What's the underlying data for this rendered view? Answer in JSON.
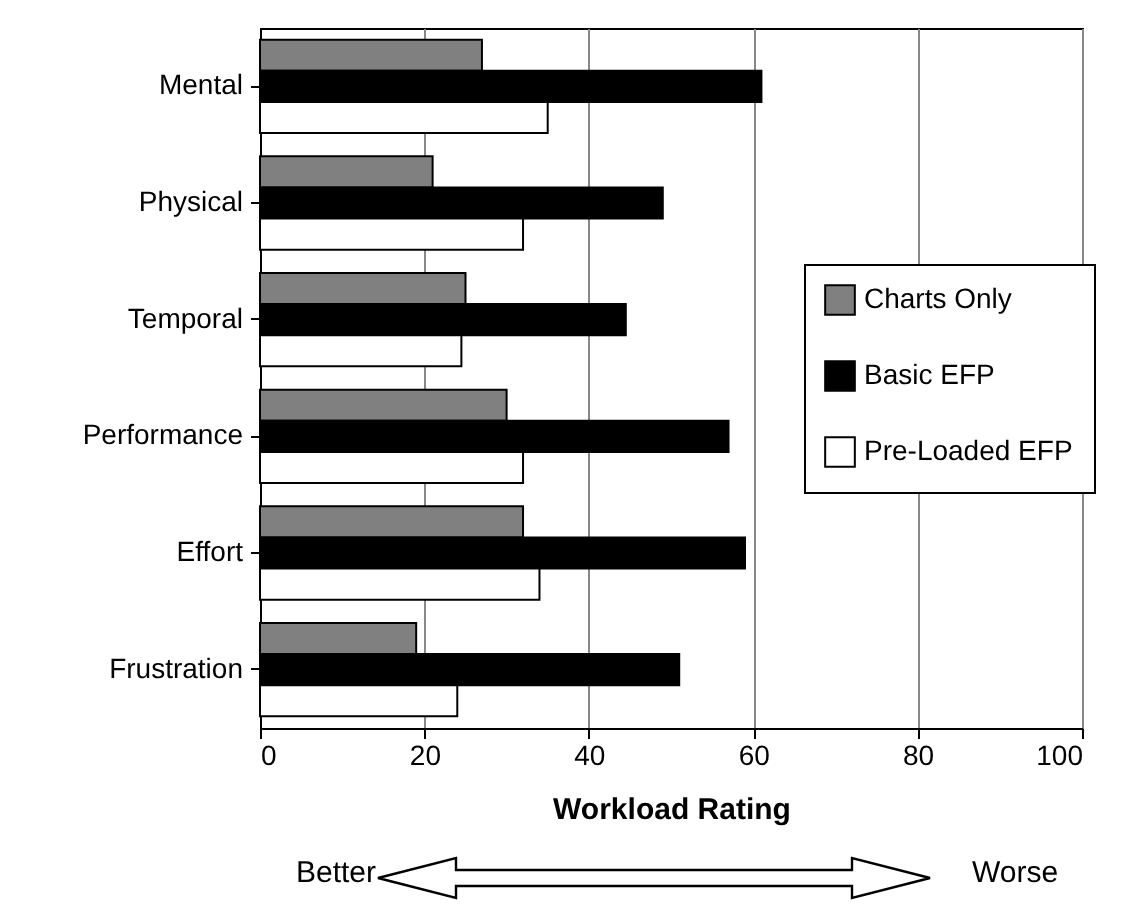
{
  "chart_data": {
    "type": "bar",
    "orientation": "horizontal",
    "xlabel": "Workload Rating",
    "categories": [
      "Mental",
      "Physical",
      "Temporal",
      "Performance",
      "Effort",
      "Frustration"
    ],
    "series": [
      {
        "name": "Charts Only",
        "color": "#808080",
        "values": [
          27,
          21,
          25,
          30,
          32,
          19
        ]
      },
      {
        "name": "Basic EFP",
        "color": "#000000",
        "values": [
          61,
          49,
          44.5,
          57,
          59,
          51
        ]
      },
      {
        "name": "Pre-Loaded EFP",
        "color": "#ffffff",
        "values": [
          35,
          32,
          24.5,
          32,
          34,
          24
        ]
      }
    ],
    "xlim": [
      0,
      100
    ],
    "xticks": [
      0,
      20,
      40,
      60,
      80,
      100
    ],
    "grid": "x",
    "legend": "right",
    "annotations": [
      "Better",
      "Worse"
    ]
  }
}
